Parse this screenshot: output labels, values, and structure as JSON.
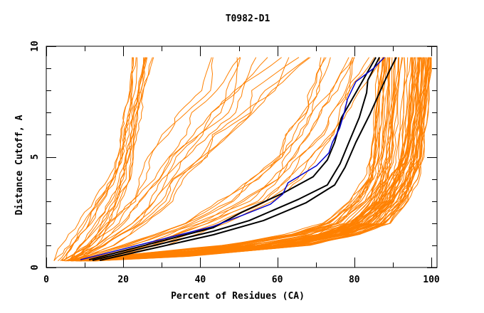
{
  "chart_data": {
    "type": "line",
    "title": "T0982-D1",
    "xlabel": "Percent of Residues (CA)",
    "ylabel": "Distance Cutoff, A",
    "xlim": [
      0,
      100
    ],
    "ylim": [
      0,
      10
    ],
    "x_ticks": [
      0,
      20,
      40,
      60,
      80,
      100
    ],
    "x_tick_labels": [
      "0",
      "20",
      "40",
      "60",
      "80",
      "100"
    ],
    "x_minor_step": 10,
    "y_ticks": [
      0,
      5,
      10
    ],
    "y_tick_labels": [
      "0",
      "5",
      "10"
    ],
    "y_minor_step": 1,
    "grid": false,
    "legend": "none",
    "colors": {
      "other_models": "#ff8000",
      "highlight_blue": "#0000cc",
      "highlight_black": "#000000",
      "axis": "#000000"
    },
    "highlighted_series": [
      {
        "name": "blue-model",
        "color": "#0000cc",
        "points": [
          [
            8.9,
            0.35
          ],
          [
            43.4,
            1.86
          ],
          [
            50.8,
            2.35
          ],
          [
            58.2,
            2.86
          ],
          [
            61.4,
            3.31
          ],
          [
            62.8,
            3.83
          ],
          [
            70.2,
            4.6
          ],
          [
            73.4,
            5.18
          ],
          [
            74.3,
            5.66
          ],
          [
            76.2,
            6.3
          ],
          [
            77.3,
            6.95
          ],
          [
            78.2,
            7.6
          ],
          [
            80.4,
            8.4
          ],
          [
            85.0,
            9.0
          ],
          [
            87.8,
            9.5
          ]
        ]
      },
      {
        "name": "black-model-1",
        "color": "#000000",
        "points": [
          [
            11.1,
            0.35
          ],
          [
            43.4,
            1.8
          ],
          [
            50.8,
            2.5
          ],
          [
            61.9,
            3.4
          ],
          [
            69.3,
            4.1
          ],
          [
            73.0,
            4.86
          ],
          [
            74.9,
            5.66
          ],
          [
            76.7,
            6.78
          ],
          [
            80.4,
            7.9
          ],
          [
            85.6,
            9.5
          ]
        ]
      },
      {
        "name": "black-model-2",
        "color": "#000000",
        "points": [
          [
            12.0,
            0.32
          ],
          [
            43.4,
            1.64
          ],
          [
            52.7,
            2.12
          ],
          [
            65.6,
            3.09
          ],
          [
            73.0,
            3.73
          ],
          [
            76.3,
            4.69
          ],
          [
            78.6,
            5.66
          ],
          [
            81.3,
            6.78
          ],
          [
            83.2,
            7.9
          ],
          [
            83.5,
            8.46
          ],
          [
            86.5,
            9.5
          ]
        ]
      },
      {
        "name": "black-model-3",
        "color": "#000000",
        "points": [
          [
            13.9,
            0.32
          ],
          [
            43.4,
            1.48
          ],
          [
            56.4,
            2.12
          ],
          [
            67.5,
            2.93
          ],
          [
            74.9,
            3.73
          ],
          [
            77.6,
            4.53
          ],
          [
            80.4,
            5.66
          ],
          [
            84.1,
            6.95
          ],
          [
            87.8,
            8.39
          ],
          [
            89.1,
            8.87
          ],
          [
            90.9,
            9.5
          ]
        ]
      }
    ],
    "background_series_groups": [
      {
        "name": "steep-left-cluster",
        "count": 14,
        "y_levels": [
          0.3,
          1.0,
          2.0,
          3.0,
          4.0,
          5.0,
          6.0,
          7.0,
          8.0,
          9.5
        ],
        "x_at_levels": [
          5,
          9,
          13,
          16,
          19,
          20.5,
          21.5,
          22.5,
          23.5,
          25
        ],
        "x_spread": [
          3,
          4,
          4,
          4,
          3,
          2,
          2,
          2,
          2.5,
          3
        ]
      },
      {
        "name": "left-mid-cluster",
        "count": 12,
        "y_levels": [
          0.3,
          1.0,
          2.0,
          3.0,
          4.0,
          5.0,
          6.0,
          7.0,
          8.0,
          9.5
        ],
        "x_at_levels": [
          6,
          14,
          22,
          27,
          31,
          35,
          40,
          45,
          50,
          57
        ],
        "x_spread": [
          2,
          4,
          6,
          7,
          8,
          9,
          10,
          11,
          12,
          13
        ]
      },
      {
        "name": "middle-cluster",
        "count": 12,
        "y_levels": [
          0.3,
          1.0,
          2.0,
          3.0,
          4.0,
          5.0,
          6.0,
          7.0,
          8.0,
          9.5
        ],
        "x_at_levels": [
          8,
          25,
          40,
          52,
          60,
          65,
          69,
          72,
          75,
          79
        ],
        "x_spread": [
          3,
          6,
          8,
          8,
          8,
          7,
          7,
          7,
          7,
          8
        ]
      },
      {
        "name": "shallow-lower-cluster",
        "count": 30,
        "y_levels": [
          0.3,
          0.5,
          1.0,
          1.5,
          2.0,
          3.0,
          4.0,
          5.0,
          7.0,
          9.5
        ],
        "x_at_levels": [
          9,
          25,
          55,
          70,
          78,
          84,
          87,
          88,
          89,
          90
        ],
        "x_spread": [
          4,
          8,
          9,
          7,
          6,
          5,
          4,
          4,
          4,
          4
        ]
      },
      {
        "name": "right-dense-cluster",
        "count": 40,
        "y_levels": [
          0.3,
          0.5,
          1.0,
          1.5,
          2.0,
          3.0,
          4.0,
          5.0,
          7.0,
          9.5
        ],
        "x_at_levels": [
          10,
          30,
          62,
          76,
          84,
          90,
          93,
          95,
          96.5,
          97.5
        ],
        "x_spread": [
          3,
          6,
          6,
          5,
          5,
          4,
          3.5,
          3,
          2.5,
          2.5
        ]
      }
    ]
  }
}
